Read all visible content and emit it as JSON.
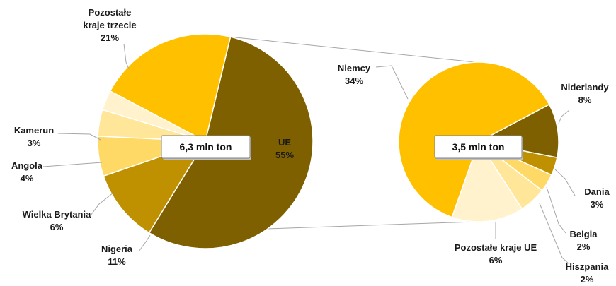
{
  "chart_data": {
    "type": "pie",
    "title": "",
    "charts": [
      {
        "total_label": "6,3 mln ton",
        "slices": [
          {
            "name": "UE",
            "value": 55,
            "pct_label": "55%",
            "color": "#7f6000"
          },
          {
            "name": "Nigeria",
            "value": 11,
            "pct_label": "11%",
            "color": "#bf9000"
          },
          {
            "name": "Wielka Brytania",
            "value": 6,
            "pct_label": "6%",
            "color": "#ffd966"
          },
          {
            "name": "Angola",
            "value": 4,
            "pct_label": "4%",
            "color": "#ffe699"
          },
          {
            "name": "Kamerun",
            "value": 3,
            "pct_label": "3%",
            "color": "#fff2cc"
          },
          {
            "name": "Pozostałe kraje trzecie",
            "value": 21,
            "pct_label": "21%",
            "color": "#ffc000"
          }
        ]
      },
      {
        "total_label": "3,5 mln ton",
        "slices": [
          {
            "name": "Niemcy",
            "value": 34,
            "pct_label": "34%",
            "color": "#ffc000"
          },
          {
            "name": "Niderlandy",
            "value": 8,
            "pct_label": "8%",
            "color": "#fff2cc"
          },
          {
            "name": "Dania",
            "value": 3,
            "pct_label": "3%",
            "color": "#ffe699"
          },
          {
            "name": "Belgia",
            "value": 2,
            "pct_label": "2%",
            "color": "#ffd966"
          },
          {
            "name": "Hiszpania",
            "value": 2,
            "pct_label": "2%",
            "color": "#bf9000"
          },
          {
            "name": "Pozostałe kraje UE",
            "value": 6,
            "pct_label": "6%",
            "color": "#7f6000"
          }
        ]
      }
    ]
  }
}
